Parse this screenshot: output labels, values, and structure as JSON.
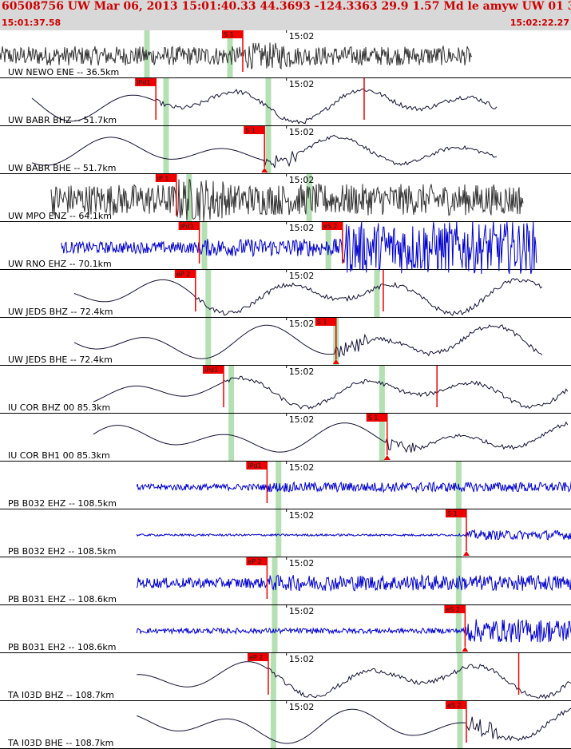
{
  "header": {
    "title": "60508756 UW Mar 06, 2013 15:01:40.33   44.3693 -124.3363 29.9 1.57 Md le amyw UW 01   3",
    "start_time": "15:01:37.58",
    "end_time": "15:02:22.27"
  },
  "colors": {
    "header_bg": "#d8d8d8",
    "text_red": "#cc0000",
    "trace_blue": "#0000cc",
    "trace_dark": "#222233",
    "pick_red": "#ee0000",
    "marker_green": "#b4e0b4"
  },
  "chart_data": {
    "type": "line",
    "title": "60508756 UW Mar 06, 2013 15:01:40.33   44.3693 -124.3363 29.9 1.57 Md le amyw UW 01   3",
    "x_range": [
      "15:01:37.58",
      "15:02:22.27"
    ],
    "tick_label": "15:02",
    "traces": [
      {
        "label": "UW NEWO ENE -- 36.5km",
        "color": "#333333",
        "style": "hf",
        "amp": 0.55,
        "start_s": 0.0,
        "end_s": 37.0,
        "green_s": [
          11.5,
          18.0
        ],
        "picks": [
          {
            "label": "S 1",
            "t_s": 19.0,
            "arrow": false
          }
        ]
      },
      {
        "label": "UW BABR BHZ -- 51.7km",
        "color": "#111133",
        "style": "lf",
        "amp": 0.85,
        "start_s": 2.5,
        "end_s": 39.0,
        "green_s": [
          13.0,
          21.0
        ],
        "picks": [
          {
            "label": "iPd1",
            "t_s": 12.2,
            "arrow": false
          },
          {
            "label": "",
            "t_s": 28.5,
            "arrow": false
          }
        ]
      },
      {
        "label": "UW BABR BHE -- 51.7km",
        "color": "#111133",
        "style": "lf",
        "amp": 0.7,
        "start_s": 2.5,
        "end_s": 39.0,
        "green_s": [
          13.0,
          21.0
        ],
        "picks": [
          {
            "label": "S 1",
            "t_s": 20.7,
            "arrow": true
          }
        ]
      },
      {
        "label": "UW MPO ENZ -- 64.1km",
        "color": "#333333",
        "style": "hf",
        "amp": 0.9,
        "start_s": 4.0,
        "end_s": 41.0,
        "green_s": [
          14.8,
          24.2
        ],
        "picks": [
          {
            "label": "iP 1",
            "t_s": 13.8,
            "arrow": false
          }
        ]
      },
      {
        "label": "UW RNO EHZ -- 70.1km",
        "color": "#0000cc",
        "style": "mf",
        "amp": 0.45,
        "start_s": 4.8,
        "end_s": 42.0,
        "green_s": [
          16.0,
          25.7
        ],
        "picks": [
          {
            "label": "iPd1",
            "t_s": 15.6,
            "arrow": false
          },
          {
            "label": "eS 2",
            "t_s": 26.8,
            "arrow": false
          }
        ]
      },
      {
        "label": "UW JEDS BHZ -- 72.4km",
        "color": "#111133",
        "style": "lf",
        "amp": 0.85,
        "start_s": 5.8,
        "end_s": 42.5,
        "green_s": [
          16.3,
          29.5
        ],
        "picks": [
          {
            "label": "eP 2",
            "t_s": 15.3,
            "arrow": false
          },
          {
            "label": "",
            "t_s": 30.0,
            "arrow": false
          }
        ]
      },
      {
        "label": "UW JEDS BHE -- 72.4km",
        "color": "#111133",
        "style": "lf",
        "amp": 0.85,
        "start_s": 5.8,
        "end_s": 42.5,
        "green_s": [
          16.3,
          26.3
        ],
        "picks": [
          {
            "label": "S 1",
            "t_s": 26.3,
            "arrow": true
          }
        ]
      },
      {
        "label": "IU COR BHZ 00 85.3km",
        "color": "#111133",
        "style": "lf",
        "amp": 0.75,
        "start_s": 7.3,
        "end_s": 44.5,
        "green_s": [
          18.1,
          29.9
        ],
        "picks": [
          {
            "label": "iPd1",
            "t_s": 17.5,
            "arrow": false
          },
          {
            "label": "",
            "t_s": 34.2,
            "arrow": false
          }
        ]
      },
      {
        "label": "IU COR BH1 00 85.3km",
        "color": "#111133",
        "style": "lf",
        "amp": 0.75,
        "start_s": 7.3,
        "end_s": 44.5,
        "green_s": [
          18.1,
          29.9
        ],
        "picks": [
          {
            "label": "S 1",
            "t_s": 30.3,
            "arrow": true
          }
        ]
      },
      {
        "label": "PB B032 EHZ -- 108.5km",
        "color": "#0000cc",
        "style": "mf",
        "amp": 0.25,
        "start_s": 10.7,
        "end_s": 48.0,
        "green_s": [
          21.8,
          35.9
        ],
        "picks": [
          {
            "label": "iPd1",
            "t_s": 20.9,
            "arrow": false
          }
        ]
      },
      {
        "label": "PB B032 EH2 -- 108.5km",
        "color": "#0000cc",
        "style": "mf",
        "amp": 0.08,
        "start_s": 10.7,
        "end_s": 48.0,
        "green_s": [
          21.8,
          35.9
        ],
        "picks": [
          {
            "label": "S 1",
            "t_s": 36.5,
            "arrow": true
          }
        ]
      },
      {
        "label": "PB B031 EHZ -- 108.6km",
        "color": "#0000cc",
        "style": "mf",
        "amp": 0.4,
        "start_s": 10.7,
        "end_s": 48.0,
        "green_s": [
          21.5,
          35.9
        ],
        "picks": [
          {
            "label": "eP 2",
            "t_s": 20.9,
            "arrow": false
          }
        ]
      },
      {
        "label": "PB B031 EH2 -- 108.6km",
        "color": "#0000cc",
        "style": "mf",
        "amp": 0.2,
        "start_s": 10.7,
        "end_s": 48.0,
        "green_s": [
          21.5,
          35.9
        ],
        "picks": [
          {
            "label": "eS 2",
            "t_s": 36.4,
            "arrow": true
          }
        ]
      },
      {
        "label": "TA I03D BHZ -- 108.7km",
        "color": "#111133",
        "style": "lf",
        "amp": 0.85,
        "start_s": 10.7,
        "end_s": 48.0,
        "green_s": [
          21.4,
          36.0
        ],
        "picks": [
          {
            "label": "eP 2",
            "t_s": 21.0,
            "arrow": false
          },
          {
            "label": "",
            "t_s": 40.6,
            "arrow": false
          }
        ]
      },
      {
        "label": "TA I03D BHE -- 108.7km",
        "color": "#111133",
        "style": "lf",
        "amp": 0.85,
        "start_s": 10.7,
        "end_s": 48.0,
        "green_s": [
          21.4,
          36.0
        ],
        "picks": [
          {
            "label": "eS 2",
            "t_s": 36.5,
            "arrow": false
          }
        ]
      }
    ]
  }
}
